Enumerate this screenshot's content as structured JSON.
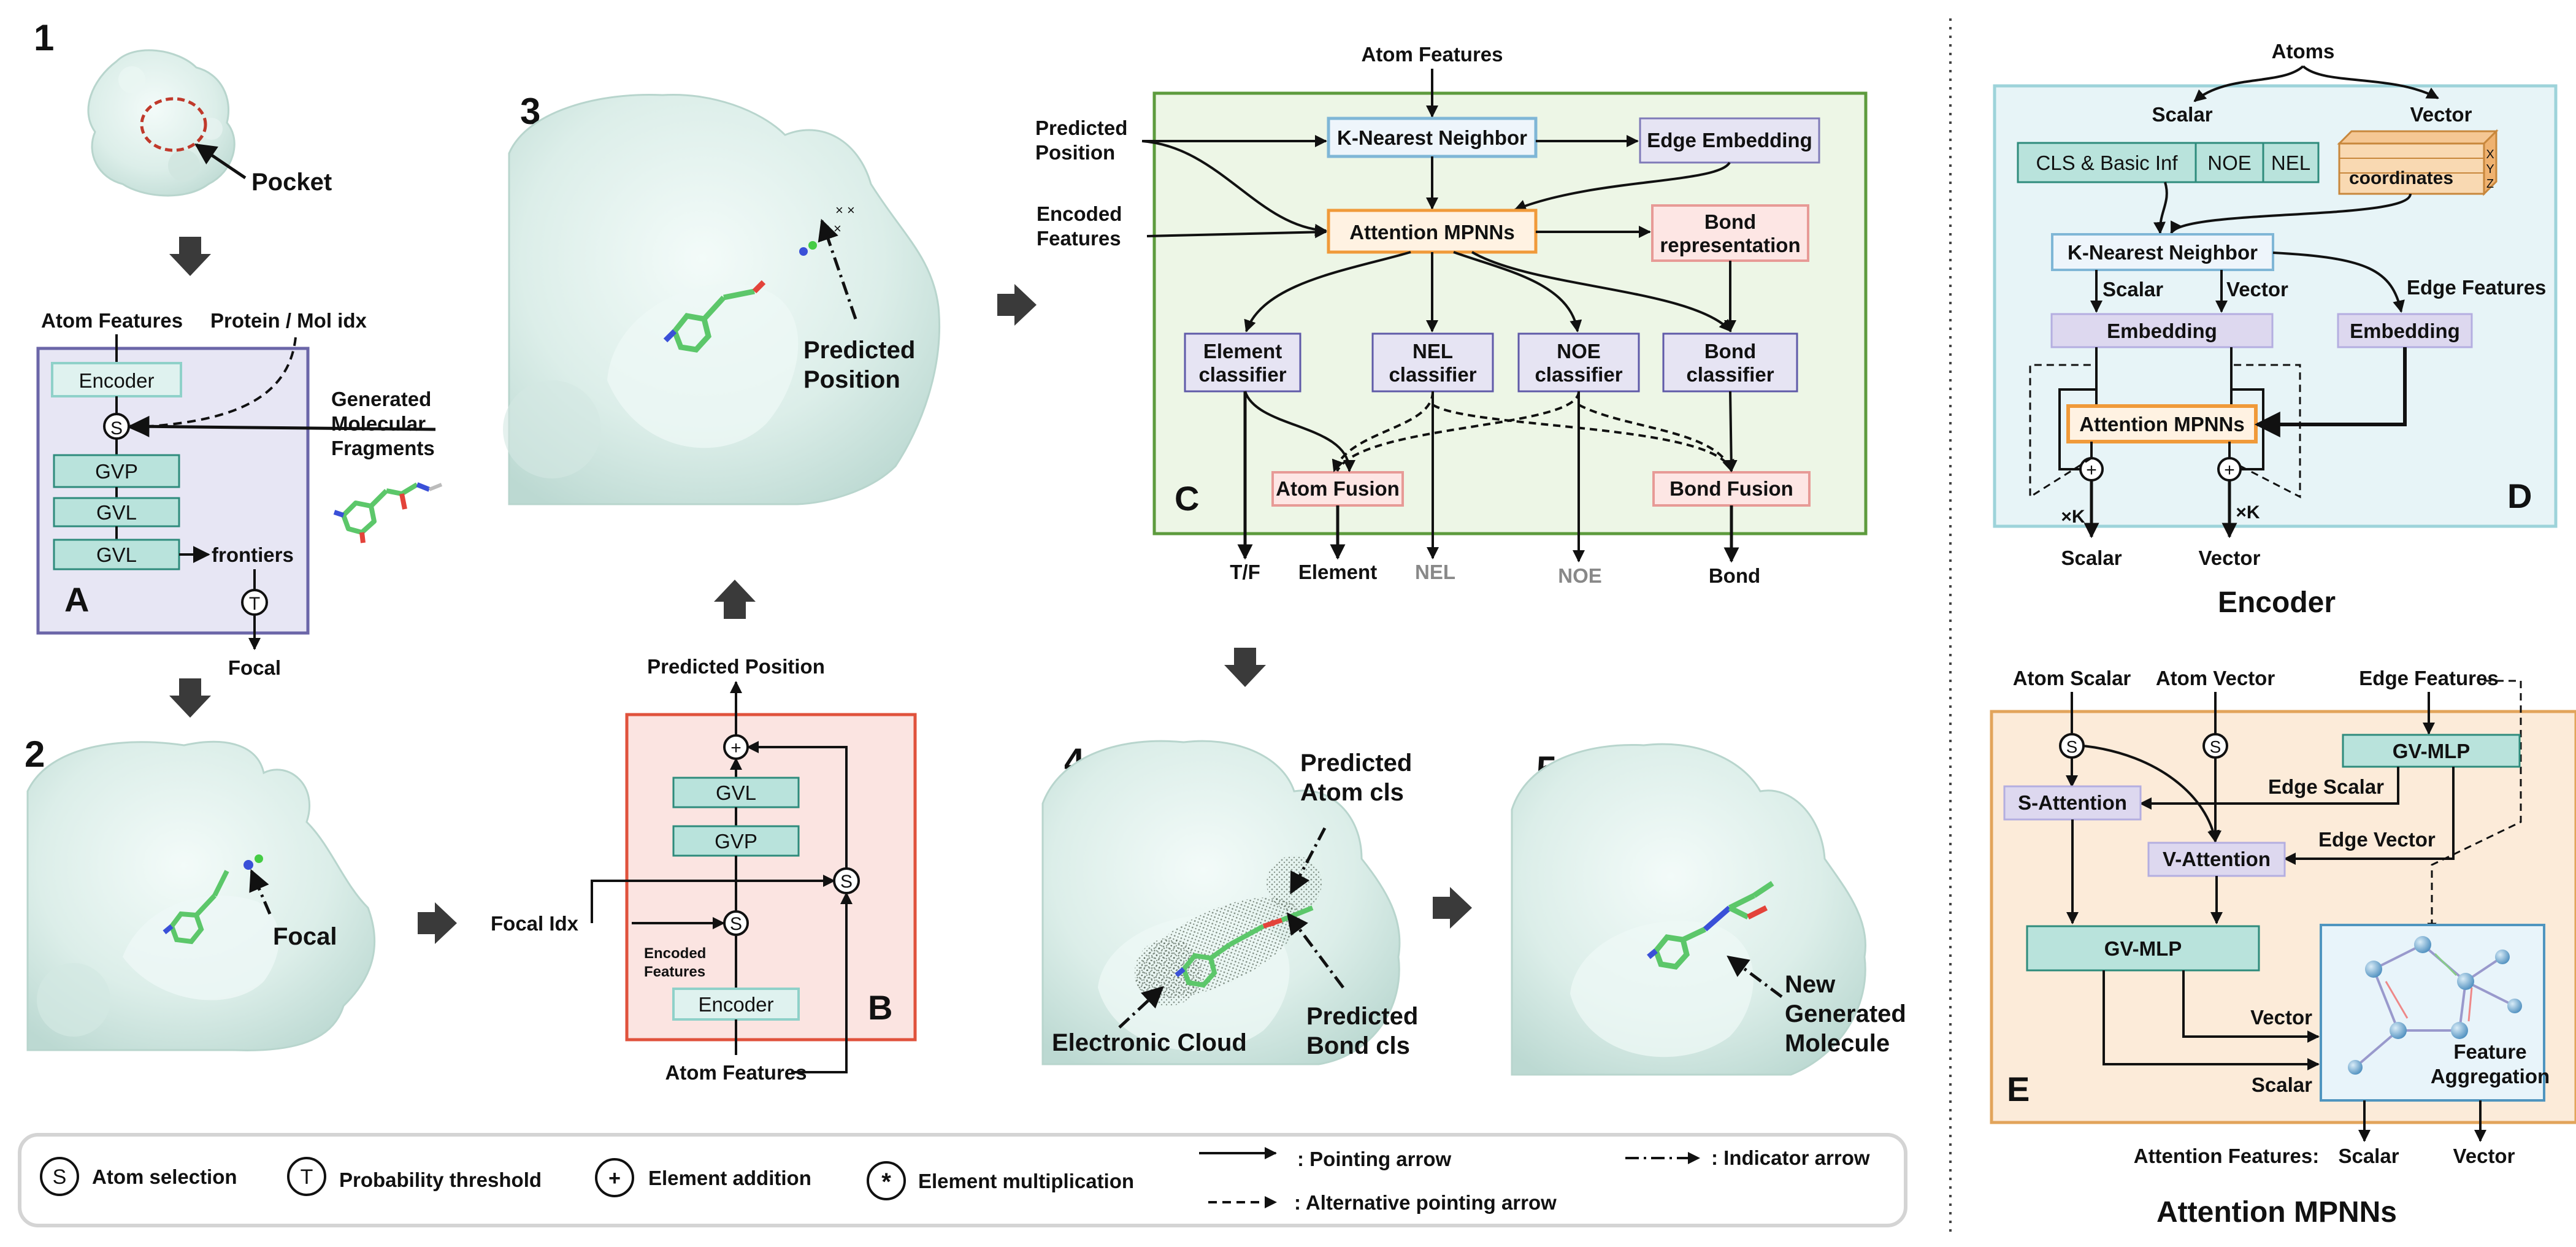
{
  "panels": {
    "p1": {
      "number": "1",
      "pocket_label": "Pocket"
    },
    "p2": {
      "number": "2",
      "focal_label": "Focal"
    },
    "p3": {
      "number": "3",
      "pred_pos_label": [
        "Predicted",
        "Position"
      ]
    },
    "p4": {
      "number": "4",
      "pred_atom_label": [
        "Predicted",
        "Atom cls"
      ],
      "pred_bond_label": [
        "Predicted",
        "Bond cls"
      ],
      "cloud_label": "Electronic Cloud"
    },
    "p5": {
      "number": "5",
      "new_mol_label": [
        "New",
        "Generated",
        "Molecule"
      ]
    }
  },
  "panelA": {
    "letter": "A",
    "atom_features": "Atom Features",
    "protein_mol_idx": "Protein / Mol idx",
    "encoder": "Encoder",
    "gvp": "GVP",
    "gvl1": "GVL",
    "gvl2": "GVL",
    "frontiers": "frontiers",
    "focal": "Focal",
    "generated_fragments": [
      "Generated",
      "Molecular",
      "Fragments"
    ],
    "s_sym": "S",
    "t_sym": "T"
  },
  "panelB": {
    "letter": "B",
    "predicted_position": "Predicted Position",
    "gvl": "GVL",
    "gvp": "GVP",
    "encoder": "Encoder",
    "focal_idx": "Focal  Idx",
    "encoded_features": [
      "Encoded",
      "Features"
    ],
    "atom_features": "Atom Features",
    "plus_sym": "+",
    "s_sym": "S"
  },
  "panelC": {
    "letter": "C",
    "atom_features": "Atom Features",
    "predicted_position": [
      "Predicted",
      "Position"
    ],
    "encoded_features": [
      "Encoded",
      "Features"
    ],
    "knn": "K-Nearest Neighbor",
    "edge_embedding": "Edge Embedding",
    "attention_mpnns": "Attention MPNNs",
    "bond_repr": [
      "Bond",
      "representation"
    ],
    "element_clf": [
      "Element",
      "classifier"
    ],
    "nel_clf": [
      "NEL",
      "classifier"
    ],
    "noe_clf": [
      "NOE",
      "classifier"
    ],
    "bond_clf": [
      "Bond",
      "classifier"
    ],
    "atom_fusion": "Atom Fusion",
    "bond_fusion": "Bond Fusion",
    "out_tf": "T/F",
    "out_element": "Element",
    "out_nel": "NEL",
    "out_noe": "NOE",
    "out_bond": "Bond"
  },
  "panelD": {
    "letter": "D",
    "atoms": "Atoms",
    "scalar": "Scalar",
    "vector": "Vector",
    "cls_basic": "CLS & Basic Inf",
    "noe": "NOE",
    "nel": "NEL",
    "coordinates": "coordinates",
    "coord_x": "X",
    "coord_y": "Y",
    "coord_z": "Z",
    "knn": "K-Nearest Neighbor",
    "scalar2": "Scalar",
    "vector2": "Vector",
    "edge_features": "Edge Features",
    "embedding1": "Embedding",
    "embedding2": "Embedding",
    "attention_mpnns": "Attention MPNNs",
    "times_k1": "×K",
    "times_k2": "×K",
    "out_scalar": "Scalar",
    "out_vector": "Vector",
    "caption": "Encoder",
    "plus_sym": "+"
  },
  "panelE": {
    "letter": "E",
    "atom_scalar": "Atom Scalar",
    "atom_vector": "Atom Vector",
    "edge_features": "Edge Features",
    "gv_mlp_top": "GV-MLP",
    "edge_scalar": "Edge Scalar",
    "edge_vector": "Edge Vector",
    "s_attention": "S-Attention",
    "v_attention": "V-Attention",
    "gv_mlp_bottom": "GV-MLP",
    "vector": "Vector",
    "scalar": "Scalar",
    "feature_aggregation": [
      "Feature",
      "Aggregation"
    ],
    "attention_features": "Attention Features:",
    "out_scalar": "Scalar",
    "out_vector": "Vector",
    "caption": "Attention MPNNs",
    "s_sym": "S"
  },
  "legend": {
    "atom_selection": "Atom selection",
    "prob_threshold": "Probability threshold",
    "element_addition": "Element addition",
    "element_mult": "Element multiplication",
    "pointing_arrow": ": Pointing arrow",
    "alt_pointing_arrow": ": Alternative pointing arrow",
    "indicator_arrow": ": Indicator arrow",
    "s_sym": "S",
    "t_sym": "T",
    "plus_sym": "+",
    "star_sym": "*"
  },
  "colors": {
    "box_teal_fill": "#dff2ef",
    "box_teal_stroke": "#5fb3a8",
    "box_lavender_fill": "#e6e4f3",
    "box_lavender_stroke": "#7f7ab8",
    "box_blue_fill": "#eef5fb",
    "box_blue_stroke": "#7fb6d6",
    "box_orange_fill": "#fff2e2",
    "box_orange_stroke": "#f09a3a",
    "box_pink_fill": "#fde6e4",
    "box_pink_stroke": "#e79a96",
    "panelA_fill": "#e7e6f4",
    "panelA_stroke": "#6b66a8",
    "panelB_fill": "#fbe4e1",
    "panelB_stroke": "#e0523c",
    "panelC_fill": "#edf6e6",
    "panelC_stroke": "#5d9b3d",
    "panelD_fill": "#e7f4f7",
    "panelD_stroke": "#9dd3da",
    "panelE_fill": "#fcebd9",
    "panelE_stroke": "#e2a45b",
    "protein_surface": "#dbeeea"
  },
  "icons": [
    "protein-surface-image",
    "molecule-stick-image",
    "electron-cloud-image",
    "graph-network-image",
    "big-arrow-icon"
  ]
}
